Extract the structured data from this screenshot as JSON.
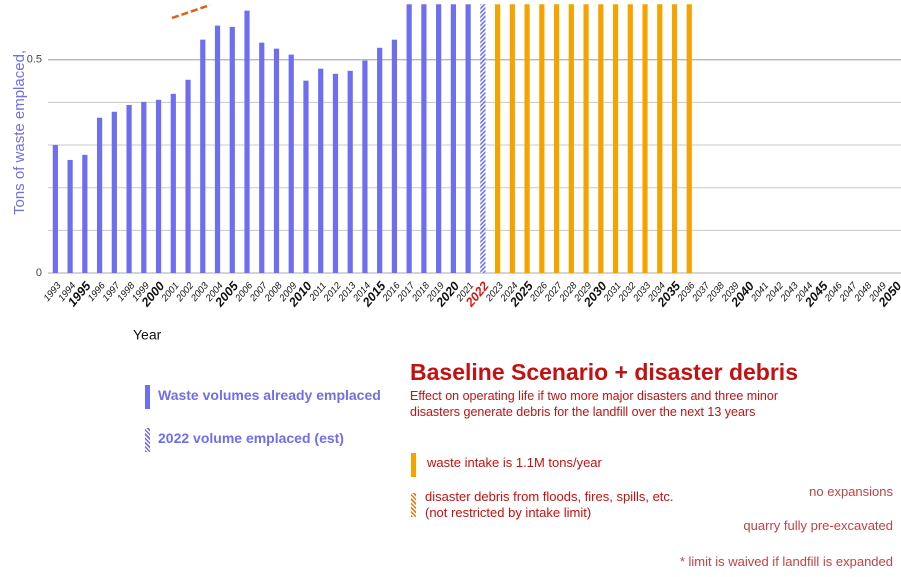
{
  "chart_data": {
    "type": "bar",
    "title": "Baseline Scenario + disaster debris",
    "subtitle": "Effect on operating life if two more major disasters and three minor\ndisasters generate debris for the landfill over the next 13 years",
    "y_label": "Tons of waste emplaced,",
    "x_label": "Year",
    "categories": [
      "1993",
      "1994",
      "1995",
      "1996",
      "1997",
      "1998",
      "1999",
      "2000",
      "2001",
      "2002",
      "2003",
      "2004",
      "2005",
      "2006",
      "2007",
      "2008",
      "2009",
      "2010",
      "2011",
      "2012",
      "2013",
      "2014",
      "2015",
      "2016",
      "2017",
      "2018",
      "2019",
      "2020",
      "2021",
      "2022",
      "2023",
      "2024",
      "2025",
      "2026",
      "2027",
      "2028",
      "2029",
      "2030",
      "2031",
      "2032",
      "2033",
      "2034",
      "2035",
      "2036",
      "2037",
      "2038",
      "2039",
      "2040",
      "2041",
      "2042",
      "2043",
      "2044",
      "2045",
      "2046",
      "2047",
      "2048",
      "2049",
      "2050"
    ],
    "series": [
      {
        "name": "Waste volumes already emplaced",
        "color": "#6e6ef0",
        "values": [
          0.3,
          0.265,
          0.277,
          0.364,
          0.378,
          0.394,
          0.401,
          0.406,
          0.42,
          0.453,
          0.547,
          0.58,
          0.577,
          0.615,
          0.54,
          0.526,
          0.512,
          0.451,
          0.479,
          0.467,
          0.474,
          0.498,
          0.528,
          0.547,
          0.63,
          0.63,
          0.63,
          0.63,
          0.63,
          null,
          null,
          null,
          null,
          null,
          null,
          null,
          null,
          null,
          null,
          null,
          null,
          null,
          null,
          null,
          null,
          null,
          null,
          null,
          null,
          null,
          null,
          null,
          null,
          null,
          null,
          null,
          null,
          null
        ]
      },
      {
        "name": "2022 volume emplaced (est)",
        "color": "#6e6ef0",
        "pattern": "hatched",
        "label_color": "#e01010",
        "values": [
          null,
          null,
          null,
          null,
          null,
          null,
          null,
          null,
          null,
          null,
          null,
          null,
          null,
          null,
          null,
          null,
          null,
          null,
          null,
          null,
          null,
          null,
          null,
          null,
          null,
          null,
          null,
          null,
          null,
          0.63,
          null,
          null,
          null,
          null,
          null,
          null,
          null,
          null,
          null,
          null,
          null,
          null,
          null,
          null,
          null,
          null,
          null,
          null,
          null,
          null,
          null,
          null,
          null,
          null,
          null,
          null,
          null,
          null
        ]
      },
      {
        "name": "waste intake is 1.1M tons/year",
        "color": "#f5a300",
        "values": [
          null,
          null,
          null,
          null,
          null,
          null,
          null,
          null,
          null,
          null,
          null,
          null,
          null,
          null,
          null,
          null,
          null,
          null,
          null,
          null,
          null,
          null,
          null,
          null,
          null,
          null,
          null,
          null,
          null,
          null,
          0.63,
          0.63,
          0.63,
          0.63,
          0.63,
          0.63,
          0.63,
          0.63,
          0.63,
          0.63,
          0.63,
          0.63,
          0.63,
          0.63,
          null,
          null,
          null,
          null,
          null,
          null,
          null,
          null,
          null,
          null,
          null,
          null,
          null,
          null
        ]
      },
      {
        "name": "disaster debris from floods, fires, spills, etc.\n(not restricted by intake limit)",
        "color": "#f07a10",
        "pattern": "hatched",
        "values": [
          null,
          null,
          null,
          null,
          null,
          null,
          null,
          null,
          null,
          null,
          null,
          null,
          null,
          null,
          null,
          null,
          null,
          null,
          null,
          null,
          null,
          null,
          null,
          null,
          null,
          null,
          null,
          null,
          null,
          null,
          null,
          null,
          null,
          null,
          null,
          null,
          null,
          null,
          null,
          null,
          null,
          null,
          null,
          null,
          null,
          null,
          null,
          null,
          null,
          null,
          null,
          null,
          null,
          null,
          null,
          null,
          null,
          null
        ]
      }
    ],
    "ylim": [
      0,
      0.64
    ],
    "yticks": [
      0,
      0.5
    ],
    "grid_lines": [
      0.1,
      0.2,
      0.3,
      0.4,
      0.5
    ],
    "annotations": [
      "no expansions",
      "quarry fully pre-excavated",
      "* limit is waived if landfill is expanded"
    ]
  }
}
